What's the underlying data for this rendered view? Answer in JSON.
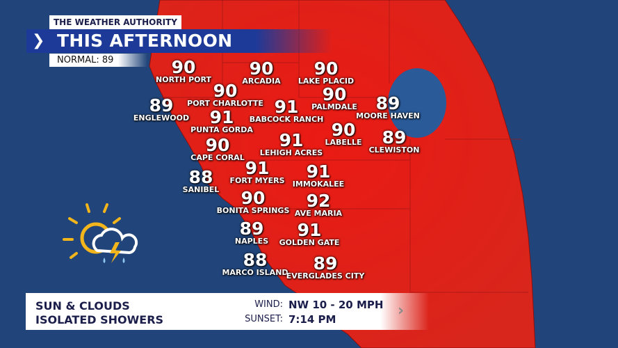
{
  "header": {
    "brand": "THE WEATHER AUTHORITY",
    "title": "THIS AFTERNOON",
    "normal": "NORMAL: 89",
    "chevron_icon": "chevron-right-icon"
  },
  "colors": {
    "water": "#21457a",
    "land": "#e8191a",
    "title_bar": "#1d3a99",
    "text_dark": "#1b1d4a"
  },
  "cities": [
    {
      "name": "NORTH PORT",
      "temp": "90"
    },
    {
      "name": "ARCADIA",
      "temp": "90"
    },
    {
      "name": "LAKE PLACID",
      "temp": "90"
    },
    {
      "name": "PORT CHARLOTTE",
      "temp": "90"
    },
    {
      "name": "PALMDALE",
      "temp": "90"
    },
    {
      "name": "ENGLEWOOD",
      "temp": "89"
    },
    {
      "name": "MOORE HAVEN",
      "temp": "89"
    },
    {
      "name": "PUNTA GORDA",
      "temp": "91"
    },
    {
      "name": "BABCOCK RANCH",
      "temp": "91"
    },
    {
      "name": "LABELLE",
      "temp": "90"
    },
    {
      "name": "CLEWISTON",
      "temp": "89"
    },
    {
      "name": "CAPE CORAL",
      "temp": "90"
    },
    {
      "name": "LEHIGH ACRES",
      "temp": "91"
    },
    {
      "name": "SANIBEL",
      "temp": "88"
    },
    {
      "name": "FORT MYERS",
      "temp": "91"
    },
    {
      "name": "IMMOKALEE",
      "temp": "91"
    },
    {
      "name": "BONITA SPRINGS",
      "temp": "90"
    },
    {
      "name": "AVE MARIA",
      "temp": "92"
    },
    {
      "name": "NAPLES",
      "temp": "89"
    },
    {
      "name": "GOLDEN GATE",
      "temp": "91"
    },
    {
      "name": "MARCO ISLAND",
      "temp": "88"
    },
    {
      "name": "EVERGLADES CITY",
      "temp": "89"
    }
  ],
  "forecast": {
    "icon": "sun-cloud-lightning-rain-icon",
    "line1": "SUN & CLOUDS",
    "line2": "ISOLATED SHOWERS",
    "wind_label": "WIND:",
    "wind_value": "NW  10 - 20 MPH",
    "sunset_label": "SUNSET:",
    "sunset_value": "7:14 PM",
    "next_icon": "chevron-right-icon"
  }
}
